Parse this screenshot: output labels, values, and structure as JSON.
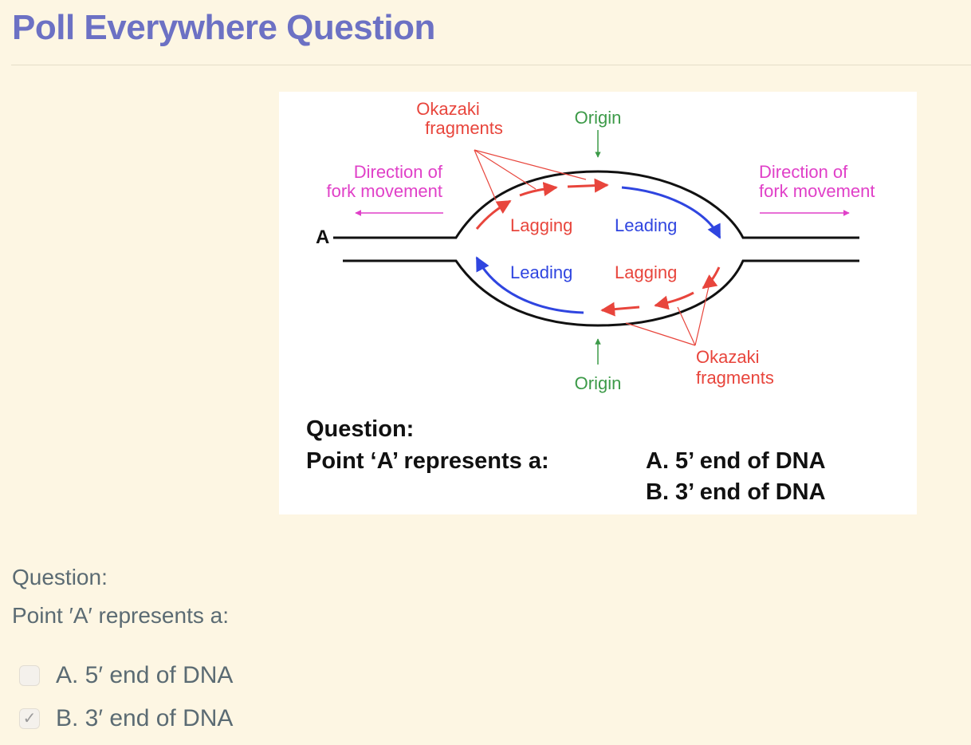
{
  "page": {
    "title": "Poll Everywhere Question"
  },
  "figure": {
    "okazaki_top": [
      "Okazaki",
      "fragments"
    ],
    "origin_top": "Origin",
    "origin_bottom": "Origin",
    "dir_left": [
      "Direction of",
      "fork movement"
    ],
    "dir_right": [
      "Direction of",
      "fork movement"
    ],
    "point_a": "A",
    "lagging_top": "Lagging",
    "leading_top": "Leading",
    "leading_bottom": "Leading",
    "lagging_bottom": "Lagging",
    "okazaki_bottom": [
      "Okazaki",
      "fragments"
    ],
    "question_heading": "Question:",
    "question_line": "Point ‘A’ represents a:",
    "option_a": "A. 5’ end of DNA",
    "option_b": "B. 3’ end of DNA",
    "colors": {
      "red": "#e8453c",
      "blue": "#2f45e0",
      "green": "#3c9a48",
      "magenta": "#e040c8",
      "black": "#111111"
    }
  },
  "question": {
    "heading": "Question:",
    "prompt": "Point ′A′ represents a:"
  },
  "options": [
    {
      "label": "A. 5′ end of DNA",
      "checked": false
    },
    {
      "label": "B. 3′ end of DNA",
      "checked": true
    }
  ]
}
